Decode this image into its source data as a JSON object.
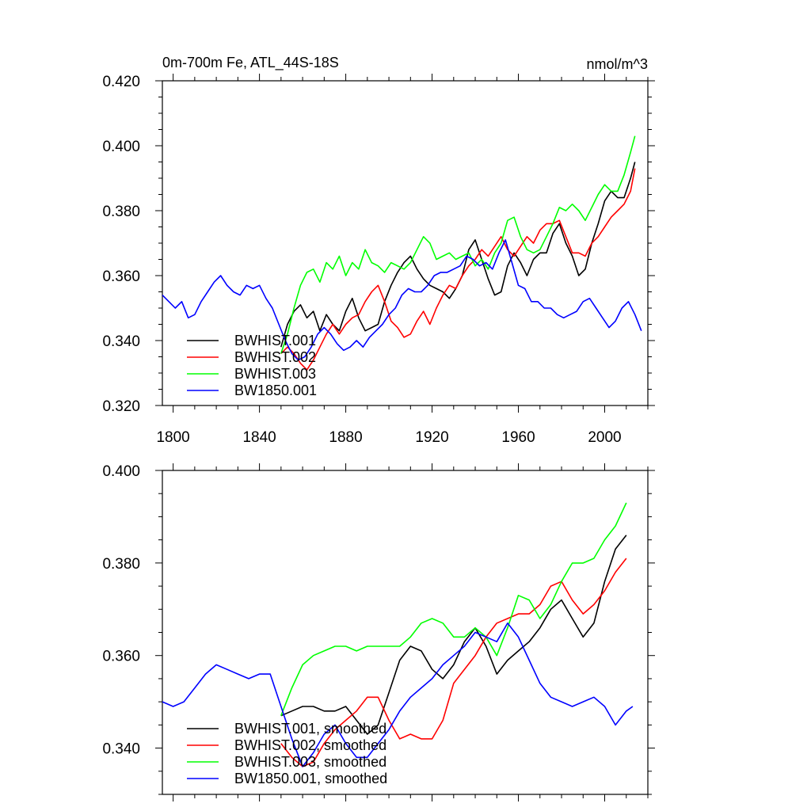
{
  "chart_data": [
    {
      "type": "line",
      "title": "0m-700m Fe, ATL_44S-18S",
      "units": "nmol/m^3",
      "xlim": [
        1795,
        2020
      ],
      "ylim": [
        0.32,
        0.42
      ],
      "xticks": [
        1800,
        1840,
        1880,
        1920,
        1960,
        2000
      ],
      "xtick_labels": [
        "1800",
        "1840",
        "1880",
        "1920",
        "1960",
        "2000"
      ],
      "yticks": [
        0.32,
        0.34,
        0.36,
        0.38,
        0.4,
        0.42
      ],
      "ytick_labels": [
        "0.320",
        "0.340",
        "0.360",
        "0.380",
        "0.400",
        "0.420"
      ],
      "legend_position": "bottom-left",
      "series": [
        {
          "name": "BWHIST.001",
          "color": "#000000",
          "x": [
            1850,
            1853,
            1856,
            1859,
            1862,
            1865,
            1868,
            1871,
            1874,
            1877,
            1880,
            1883,
            1886,
            1889,
            1892,
            1895,
            1898,
            1901,
            1904,
            1907,
            1910,
            1913,
            1916,
            1919,
            1922,
            1925,
            1928,
            1931,
            1934,
            1937,
            1940,
            1943,
            1946,
            1949,
            1952,
            1955,
            1958,
            1961,
            1964,
            1967,
            1970,
            1973,
            1976,
            1979,
            1982,
            1985,
            1988,
            1991,
            1994,
            1997,
            2000,
            2003,
            2006,
            2009,
            2012,
            2014
          ],
          "y": [
            0.338,
            0.345,
            0.349,
            0.351,
            0.347,
            0.349,
            0.343,
            0.348,
            0.345,
            0.343,
            0.349,
            0.353,
            0.347,
            0.343,
            0.344,
            0.345,
            0.352,
            0.357,
            0.361,
            0.364,
            0.366,
            0.362,
            0.359,
            0.357,
            0.356,
            0.355,
            0.353,
            0.356,
            0.36,
            0.368,
            0.371,
            0.365,
            0.359,
            0.354,
            0.355,
            0.363,
            0.367,
            0.364,
            0.36,
            0.365,
            0.367,
            0.367,
            0.373,
            0.376,
            0.37,
            0.366,
            0.36,
            0.362,
            0.37,
            0.376,
            0.383,
            0.386,
            0.384,
            0.384,
            0.39,
            0.395
          ]
        },
        {
          "name": "BWHIST.002",
          "color": "#ff0000",
          "x": [
            1850,
            1853,
            1856,
            1859,
            1862,
            1865,
            1868,
            1871,
            1874,
            1877,
            1880,
            1883,
            1886,
            1889,
            1892,
            1895,
            1898,
            1901,
            1904,
            1907,
            1910,
            1913,
            1916,
            1919,
            1922,
            1925,
            1928,
            1931,
            1934,
            1937,
            1940,
            1943,
            1946,
            1949,
            1952,
            1955,
            1958,
            1961,
            1964,
            1967,
            1970,
            1973,
            1976,
            1979,
            1982,
            1985,
            1988,
            1991,
            1994,
            1997,
            2000,
            2003,
            2006,
            2009,
            2012,
            2014
          ],
          "y": [
            0.336,
            0.338,
            0.336,
            0.333,
            0.331,
            0.334,
            0.338,
            0.342,
            0.345,
            0.342,
            0.345,
            0.347,
            0.348,
            0.352,
            0.355,
            0.357,
            0.352,
            0.346,
            0.344,
            0.341,
            0.342,
            0.346,
            0.349,
            0.345,
            0.35,
            0.354,
            0.357,
            0.356,
            0.36,
            0.363,
            0.365,
            0.368,
            0.366,
            0.369,
            0.372,
            0.368,
            0.366,
            0.369,
            0.372,
            0.37,
            0.374,
            0.376,
            0.376,
            0.377,
            0.372,
            0.367,
            0.367,
            0.366,
            0.37,
            0.372,
            0.375,
            0.378,
            0.38,
            0.382,
            0.386,
            0.393
          ]
        },
        {
          "name": "BWHIST.003",
          "color": "#00ff00",
          "x": [
            1850,
            1853,
            1856,
            1859,
            1862,
            1865,
            1868,
            1871,
            1874,
            1877,
            1880,
            1883,
            1886,
            1889,
            1892,
            1895,
            1898,
            1901,
            1904,
            1907,
            1910,
            1913,
            1916,
            1919,
            1922,
            1925,
            1928,
            1931,
            1934,
            1937,
            1940,
            1943,
            1946,
            1949,
            1952,
            1955,
            1958,
            1961,
            1964,
            1967,
            1970,
            1973,
            1976,
            1979,
            1982,
            1985,
            1988,
            1991,
            1994,
            1997,
            2000,
            2003,
            2006,
            2009,
            2012,
            2014
          ],
          "y": [
            0.336,
            0.342,
            0.35,
            0.357,
            0.361,
            0.362,
            0.358,
            0.364,
            0.362,
            0.366,
            0.36,
            0.364,
            0.362,
            0.368,
            0.364,
            0.363,
            0.361,
            0.364,
            0.363,
            0.362,
            0.364,
            0.368,
            0.372,
            0.37,
            0.365,
            0.366,
            0.367,
            0.365,
            0.366,
            0.367,
            0.363,
            0.365,
            0.362,
            0.367,
            0.37,
            0.377,
            0.378,
            0.372,
            0.368,
            0.367,
            0.368,
            0.372,
            0.376,
            0.381,
            0.38,
            0.382,
            0.38,
            0.377,
            0.381,
            0.385,
            0.388,
            0.386,
            0.386,
            0.391,
            0.398,
            0.403
          ]
        },
        {
          "name": "BW1850.001",
          "color": "#0000ff",
          "x": [
            1795,
            1798,
            1801,
            1804,
            1807,
            1810,
            1813,
            1816,
            1819,
            1822,
            1825,
            1828,
            1831,
            1834,
            1837,
            1840,
            1843,
            1846,
            1849,
            1852,
            1855,
            1858,
            1861,
            1864,
            1867,
            1870,
            1873,
            1876,
            1879,
            1882,
            1885,
            1888,
            1891,
            1894,
            1897,
            1900,
            1903,
            1906,
            1909,
            1912,
            1915,
            1918,
            1921,
            1924,
            1927,
            1930,
            1933,
            1936,
            1939,
            1942,
            1945,
            1948,
            1951,
            1954,
            1957,
            1960,
            1963,
            1966,
            1969,
            1972,
            1975,
            1978,
            1981,
            1984,
            1987,
            1990,
            1993,
            1996,
            1999,
            2002,
            2005,
            2008,
            2011,
            2014,
            2017
          ],
          "y": [
            0.354,
            0.352,
            0.35,
            0.352,
            0.347,
            0.348,
            0.352,
            0.355,
            0.358,
            0.36,
            0.357,
            0.355,
            0.354,
            0.357,
            0.356,
            0.357,
            0.353,
            0.35,
            0.345,
            0.34,
            0.336,
            0.334,
            0.335,
            0.338,
            0.342,
            0.344,
            0.342,
            0.339,
            0.337,
            0.338,
            0.34,
            0.338,
            0.341,
            0.343,
            0.345,
            0.348,
            0.35,
            0.354,
            0.356,
            0.355,
            0.355,
            0.357,
            0.36,
            0.361,
            0.361,
            0.362,
            0.363,
            0.366,
            0.365,
            0.363,
            0.364,
            0.362,
            0.367,
            0.371,
            0.364,
            0.357,
            0.356,
            0.352,
            0.352,
            0.35,
            0.35,
            0.348,
            0.347,
            0.348,
            0.349,
            0.352,
            0.353,
            0.35,
            0.347,
            0.344,
            0.346,
            0.35,
            0.352,
            0.348,
            0.343
          ]
        }
      ]
    },
    {
      "type": "line",
      "xlim": [
        1795,
        2020
      ],
      "ylim": [
        0.33,
        0.4
      ],
      "xticks": [
        1800,
        1840,
        1880,
        1920,
        1960,
        2000
      ],
      "yticks": [
        0.34,
        0.36,
        0.38,
        0.4
      ],
      "ytick_labels": [
        "0.340",
        "0.360",
        "0.380",
        "0.400"
      ],
      "legend_position": "bottom-left",
      "series": [
        {
          "name": "BWHIST.001, smoothed",
          "color": "#000000",
          "x": [
            1850,
            1855,
            1860,
            1865,
            1870,
            1875,
            1880,
            1885,
            1890,
            1895,
            1900,
            1905,
            1910,
            1915,
            1920,
            1925,
            1930,
            1935,
            1940,
            1945,
            1950,
            1955,
            1960,
            1965,
            1970,
            1975,
            1980,
            1985,
            1990,
            1995,
            2000,
            2005,
            2010
          ],
          "y": [
            0.347,
            0.348,
            0.349,
            0.349,
            0.348,
            0.348,
            0.349,
            0.346,
            0.343,
            0.345,
            0.352,
            0.359,
            0.362,
            0.361,
            0.357,
            0.355,
            0.358,
            0.363,
            0.366,
            0.362,
            0.356,
            0.359,
            0.361,
            0.363,
            0.366,
            0.37,
            0.372,
            0.368,
            0.364,
            0.367,
            0.376,
            0.383,
            0.386
          ]
        },
        {
          "name": "BWHIST.002, smoothed",
          "color": "#ff0000",
          "x": [
            1850,
            1855,
            1860,
            1865,
            1870,
            1875,
            1880,
            1885,
            1890,
            1895,
            1900,
            1905,
            1910,
            1915,
            1920,
            1925,
            1930,
            1935,
            1940,
            1945,
            1950,
            1955,
            1960,
            1965,
            1970,
            1975,
            1980,
            1985,
            1990,
            1995,
            2000,
            2005,
            2010
          ],
          "y": [
            0.341,
            0.338,
            0.336,
            0.337,
            0.341,
            0.344,
            0.346,
            0.348,
            0.351,
            0.351,
            0.346,
            0.342,
            0.343,
            0.342,
            0.342,
            0.346,
            0.354,
            0.357,
            0.36,
            0.364,
            0.367,
            0.368,
            0.369,
            0.369,
            0.371,
            0.375,
            0.376,
            0.372,
            0.369,
            0.371,
            0.374,
            0.378,
            0.381
          ]
        },
        {
          "name": "BWHIST.003, smoothed",
          "color": "#00ff00",
          "x": [
            1850,
            1855,
            1860,
            1865,
            1870,
            1875,
            1880,
            1885,
            1890,
            1895,
            1900,
            1905,
            1910,
            1915,
            1920,
            1925,
            1930,
            1935,
            1940,
            1945,
            1950,
            1955,
            1960,
            1965,
            1970,
            1975,
            1980,
            1985,
            1990,
            1995,
            2000,
            2005,
            2010
          ],
          "y": [
            0.347,
            0.353,
            0.358,
            0.36,
            0.361,
            0.362,
            0.362,
            0.361,
            0.362,
            0.362,
            0.362,
            0.362,
            0.364,
            0.367,
            0.368,
            0.367,
            0.364,
            0.364,
            0.366,
            0.364,
            0.36,
            0.366,
            0.373,
            0.372,
            0.368,
            0.371,
            0.376,
            0.38,
            0.38,
            0.381,
            0.385,
            0.388,
            0.393
          ]
        },
        {
          "name": "BW1850.001, smoothed",
          "color": "#0000ff",
          "x": [
            1795,
            1800,
            1805,
            1810,
            1815,
            1820,
            1825,
            1830,
            1835,
            1840,
            1845,
            1850,
            1855,
            1860,
            1865,
            1870,
            1875,
            1880,
            1885,
            1890,
            1895,
            1900,
            1905,
            1910,
            1915,
            1920,
            1925,
            1930,
            1935,
            1940,
            1945,
            1950,
            1955,
            1960,
            1965,
            1970,
            1975,
            1980,
            1985,
            1990,
            1995,
            2000,
            2005,
            2010,
            2013
          ],
          "y": [
            0.35,
            0.349,
            0.35,
            0.353,
            0.356,
            0.358,
            0.357,
            0.356,
            0.355,
            0.356,
            0.356,
            0.349,
            0.342,
            0.336,
            0.339,
            0.343,
            0.345,
            0.341,
            0.338,
            0.338,
            0.341,
            0.344,
            0.348,
            0.351,
            0.353,
            0.355,
            0.358,
            0.36,
            0.362,
            0.365,
            0.364,
            0.363,
            0.367,
            0.364,
            0.359,
            0.354,
            0.351,
            0.35,
            0.349,
            0.35,
            0.351,
            0.349,
            0.345,
            0.348,
            0.349
          ]
        }
      ]
    }
  ]
}
